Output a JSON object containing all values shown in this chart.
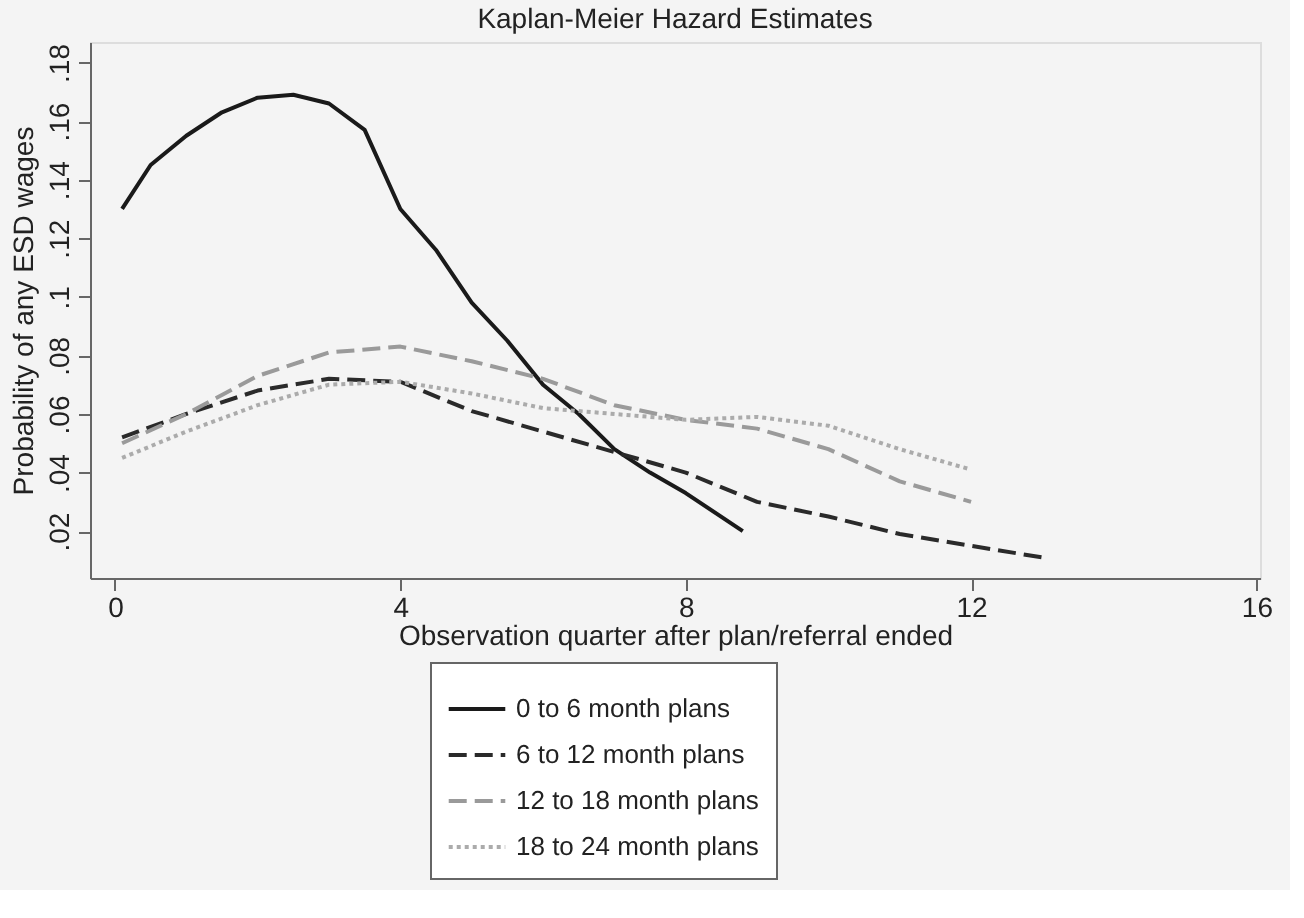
{
  "chart_data": {
    "type": "line",
    "title": "Kaplan-Meier Hazard Estimates",
    "xlabel": "Observation quarter after plan/referral ended",
    "ylabel": "Probability of any ESD wages",
    "xlim": [
      -0.35,
      16.05
    ],
    "xticks": [
      0,
      4,
      8,
      12,
      16
    ],
    "ylim": [
      0.004,
      0.187
    ],
    "yticks": [
      {
        "value": 0.02,
        "label": ".02"
      },
      {
        "value": 0.04,
        "label": ".04"
      },
      {
        "value": 0.06,
        "label": ".06"
      },
      {
        "value": 0.08,
        "label": ".08"
      },
      {
        "value": 0.1,
        "label": ".1"
      },
      {
        "value": 0.12,
        "label": ".12"
      },
      {
        "value": 0.14,
        "label": ".14"
      },
      {
        "value": 0.16,
        "label": ".16"
      },
      {
        "value": 0.18,
        "label": ".18"
      }
    ],
    "grid": false,
    "legend": "bottom",
    "marker": "none",
    "series": [
      {
        "name": "0 to 6 month plans",
        "color": "#1a1a1a",
        "line_style": "solid",
        "x": [
          0.1,
          0.5,
          1,
          1.5,
          2,
          2.5,
          3,
          3.5,
          4,
          4.5,
          5,
          5.5,
          6,
          6.5,
          7,
          7.5,
          8,
          8.8
        ],
        "values": [
          0.13,
          0.145,
          0.155,
          0.163,
          0.168,
          0.169,
          0.166,
          0.157,
          0.13,
          0.116,
          0.098,
          0.085,
          0.07,
          0.06,
          0.048,
          0.04,
          0.033,
          0.02
        ]
      },
      {
        "name": "6 to 12 month plans",
        "color": "#2a2a2a",
        "line_style": "dashed",
        "x": [
          0.1,
          1,
          2,
          3,
          4,
          5,
          6,
          7,
          8,
          9,
          10,
          11,
          12,
          13
        ],
        "values": [
          0.052,
          0.06,
          0.068,
          0.072,
          0.071,
          0.061,
          0.054,
          0.047,
          0.04,
          0.03,
          0.025,
          0.019,
          0.015,
          0.011
        ]
      },
      {
        "name": "12 to 18 month plans",
        "color": "#9a9a9a",
        "line_style": "dashed",
        "x": [
          0.1,
          1,
          2,
          3,
          4,
          5,
          6,
          7,
          8,
          9,
          10,
          11,
          12
        ],
        "values": [
          0.05,
          0.06,
          0.073,
          0.081,
          0.083,
          0.078,
          0.072,
          0.063,
          0.058,
          0.055,
          0.048,
          0.037,
          0.03
        ]
      },
      {
        "name": "18 to 24 month plans",
        "color": "#ababab",
        "line_style": "dotted",
        "x": [
          0.1,
          1,
          2,
          3,
          4,
          5,
          6,
          7,
          8,
          9,
          10,
          11,
          12
        ],
        "values": [
          0.045,
          0.054,
          0.063,
          0.07,
          0.071,
          0.067,
          0.062,
          0.06,
          0.058,
          0.059,
          0.056,
          0.048,
          0.041
        ]
      }
    ]
  }
}
